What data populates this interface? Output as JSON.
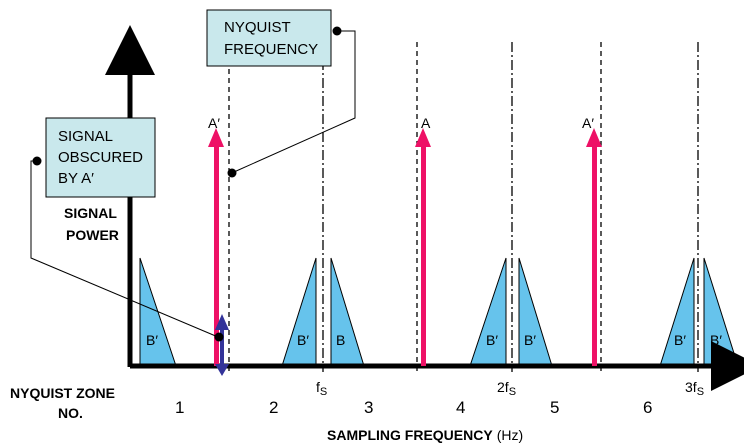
{
  "callouts": {
    "nyquist_box": [
      "NYQUIST",
      "FREQUENCY"
    ],
    "signal_box": [
      "SIGNAL",
      "OBSCURED",
      "BY A′"
    ]
  },
  "axis": {
    "y_label": [
      "SIGNAL",
      "POWER"
    ],
    "x_label": "SAMPLING FREQUENCY",
    "x_unit": "(Hz)"
  },
  "zone_heading": [
    "NYQUIST ZONE",
    "NO."
  ],
  "zones": [
    "1",
    "2",
    "3",
    "4",
    "5",
    "6"
  ],
  "fs_ticks": [
    {
      "mult": "",
      "sym": "f",
      "sub": "S"
    },
    {
      "mult": "2",
      "sym": "f",
      "sub": "S"
    },
    {
      "mult": "3",
      "sym": "f",
      "sub": "S"
    }
  ],
  "arrows": [
    "A′",
    "A",
    "A′"
  ],
  "bands": [
    "B′",
    "B′",
    "B",
    "B′",
    "B′",
    "B′",
    "B′"
  ],
  "colors": {
    "arrow": "#ee1166",
    "band_fill": "#66c3ec",
    "box_fill": "#c9e8ec",
    "marker": "#333399"
  }
}
